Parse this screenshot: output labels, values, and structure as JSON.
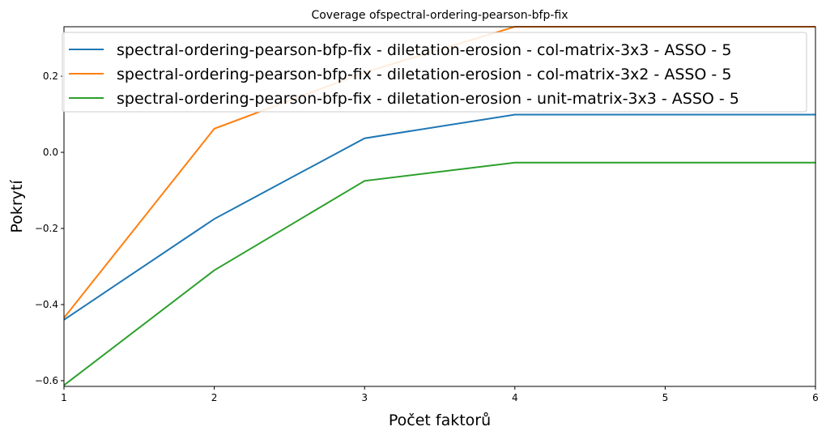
{
  "chart_data": {
    "type": "line",
    "title": "Coverage ofspectral-ordering-pearson-bfp-fix",
    "xlabel": "Počet faktorů",
    "ylabel": "Pokrytí",
    "xlim": [
      1,
      6
    ],
    "ylim": [
      -0.615,
      0.33
    ],
    "x": [
      1,
      2,
      3,
      4,
      5,
      6
    ],
    "xticks": [
      "1",
      "2",
      "3",
      "4",
      "5",
      "6"
    ],
    "yticks": [
      {
        "value": -0.6,
        "label": "−0.6"
      },
      {
        "value": -0.4,
        "label": "−0.4"
      },
      {
        "value": -0.2,
        "label": "−0.2"
      },
      {
        "value": 0.0,
        "label": "0.0"
      },
      {
        "value": 0.2,
        "label": "0.2"
      }
    ],
    "grid": false,
    "legend_position": "top",
    "series": [
      {
        "name": "spectral-ordering-pearson-bfp-fix - diletation-erosion - col-matrix-3x3 - ASSO - 5",
        "color": "#1f77b4",
        "values": [
          -0.44,
          -0.175,
          0.037,
          0.099,
          0.099,
          0.099
        ]
      },
      {
        "name": "spectral-ordering-pearson-bfp-fix - diletation-erosion - col-matrix-3x2 - ASSO - 5",
        "color": "#ff7f0e",
        "values": [
          -0.435,
          0.062,
          0.21,
          0.335,
          0.335,
          0.335
        ]
      },
      {
        "name": "spectral-ordering-pearson-bfp-fix - diletation-erosion - unit-matrix-3x3 - ASSO - 5",
        "color": "#2ca02c",
        "values": [
          -0.612,
          -0.31,
          -0.075,
          -0.027,
          -0.027,
          -0.027
        ]
      }
    ]
  }
}
